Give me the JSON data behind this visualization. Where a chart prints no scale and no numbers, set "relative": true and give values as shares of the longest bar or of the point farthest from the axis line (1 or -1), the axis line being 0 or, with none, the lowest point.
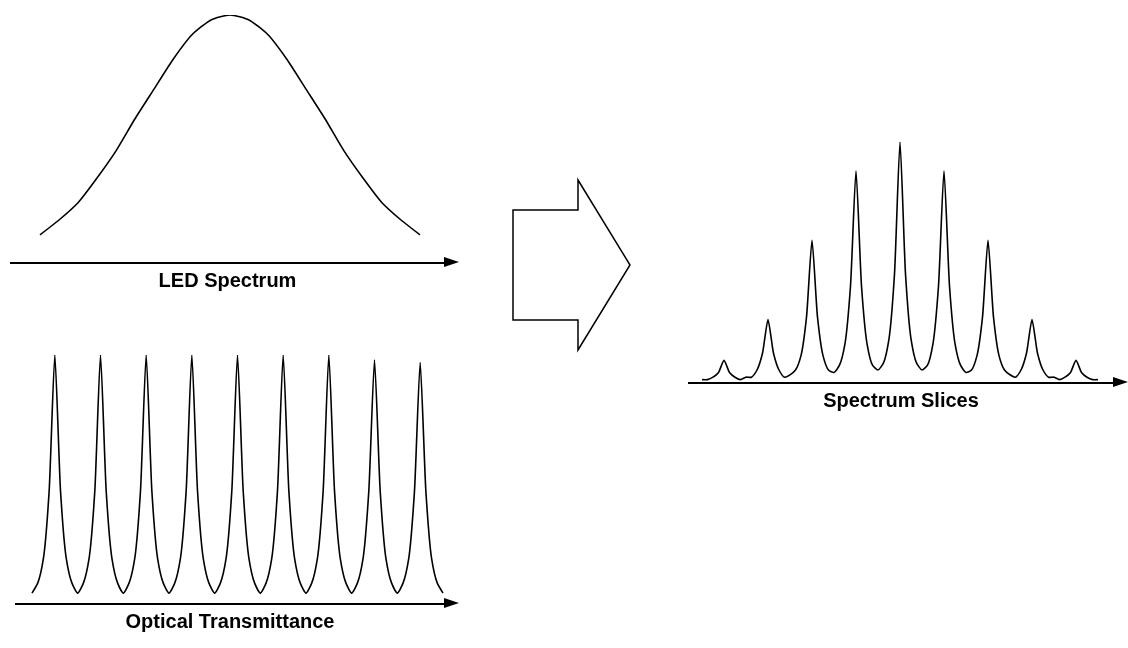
{
  "chart_data": [
    {
      "type": "line",
      "xlabel": "LED Spectrum",
      "relative": true,
      "tick_labels": false,
      "categories": [
        null,
        null,
        null,
        null,
        null,
        null,
        null,
        null,
        null,
        null,
        null,
        null,
        null,
        null,
        null,
        null,
        null,
        null,
        null,
        null,
        null
      ],
      "series": [
        {
          "color": "#000000",
          "values": [
            0.11,
            0.17,
            0.24,
            0.34,
            0.45,
            0.58,
            0.7,
            0.82,
            0.92,
            0.98,
            1,
            0.98,
            0.92,
            0.82,
            0.7,
            0.58,
            0.45,
            0.34,
            0.24,
            0.17,
            0.11
          ]
        }
      ]
    },
    {
      "type": "line",
      "xlabel": "Optical Transmittance",
      "relative": true,
      "tick_labels": false,
      "categories": [
        null,
        null,
        null,
        null,
        null,
        null,
        null,
        null,
        null,
        null,
        null,
        null,
        null,
        null,
        null,
        null,
        null,
        null,
        null,
        null,
        null,
        null,
        null,
        null,
        null,
        null,
        null,
        null,
        null,
        null,
        null,
        null,
        null,
        null,
        null,
        null,
        null,
        null,
        null,
        null,
        null,
        null,
        null,
        null,
        null,
        null,
        null,
        null,
        null,
        null,
        null,
        null,
        null,
        null,
        null,
        null,
        null,
        null,
        null,
        null,
        null,
        null,
        null,
        null,
        null,
        null,
        null,
        null,
        null,
        null,
        null,
        null,
        null
      ],
      "series": [
        {
          "color": "#000000",
          "values": [
            0.04,
            0.08,
            0.18,
            0.45,
            1,
            0.45,
            0.18,
            0.08,
            0.04,
            0.08,
            0.18,
            0.45,
            1,
            0.45,
            0.18,
            0.08,
            0.04,
            0.08,
            0.18,
            0.45,
            1,
            0.45,
            0.18,
            0.08,
            0.04,
            0.08,
            0.18,
            0.45,
            1,
            0.45,
            0.18,
            0.08,
            0.04,
            0.08,
            0.18,
            0.45,
            1,
            0.45,
            0.18,
            0.08,
            0.04,
            0.08,
            0.18,
            0.45,
            1,
            0.45,
            0.18,
            0.08,
            0.04,
            0.08,
            0.18,
            0.45,
            1,
            0.45,
            0.18,
            0.08,
            0.04,
            0.08,
            0.18,
            0.45,
            0.98,
            0.45,
            0.18,
            0.08,
            0.04,
            0.08,
            0.18,
            0.45,
            0.97,
            0.45,
            0.18,
            0.08,
            0.04
          ]
        }
      ]
    },
    {
      "type": "line",
      "xlabel": "Spectrum Slices",
      "relative": true,
      "tick_labels": false,
      "categories": [
        null,
        null,
        null,
        null,
        null,
        null,
        null,
        null,
        null,
        null,
        null,
        null,
        null,
        null,
        null,
        null,
        null,
        null,
        null,
        null,
        null,
        null,
        null,
        null,
        null,
        null,
        null,
        null,
        null,
        null,
        null,
        null,
        null,
        null,
        null,
        null,
        null,
        null,
        null,
        null,
        null,
        null,
        null,
        null,
        null,
        null,
        null,
        null,
        null,
        null,
        null,
        null,
        null,
        null,
        null,
        null,
        null,
        null,
        null,
        null,
        null,
        null,
        null,
        null,
        null,
        null,
        null,
        null,
        null,
        null,
        null,
        null,
        null
      ],
      "series": [
        {
          "color": "#000000",
          "values": [
            0.01,
            0.01,
            0.02,
            0.04,
            0.09,
            0.04,
            0.02,
            0.01,
            0.02,
            0.02,
            0.05,
            0.12,
            0.26,
            0.12,
            0.05,
            0.02,
            0.03,
            0.05,
            0.11,
            0.27,
            0.59,
            0.27,
            0.11,
            0.05,
            0.04,
            0.07,
            0.16,
            0.4,
            0.88,
            0.4,
            0.16,
            0.07,
            0.05,
            0.08,
            0.18,
            0.45,
            1,
            0.45,
            0.18,
            0.08,
            0.05,
            0.07,
            0.16,
            0.4,
            0.88,
            0.4,
            0.16,
            0.07,
            0.04,
            0.05,
            0.11,
            0.27,
            0.59,
            0.27,
            0.11,
            0.05,
            0.03,
            0.02,
            0.05,
            0.12,
            0.26,
            0.12,
            0.05,
            0.02,
            0.02,
            0.01,
            0.02,
            0.04,
            0.09,
            0.04,
            0.02,
            0.01,
            0.01
          ]
        }
      ]
    }
  ]
}
